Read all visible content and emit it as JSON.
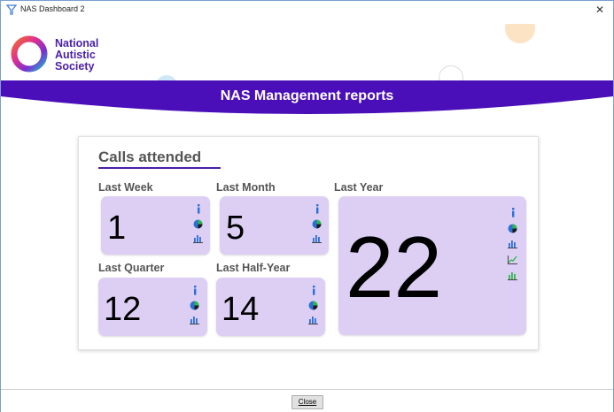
{
  "window": {
    "title": "NAS Dashboard 2",
    "close_glyph": "✕"
  },
  "logo": {
    "lines": [
      "National",
      "Autistic",
      "Society"
    ]
  },
  "banner": {
    "title": "NAS Management reports",
    "color": "#4a0fb8"
  },
  "panel": {
    "title": "Calls attended",
    "accent": "#4a1fa8",
    "tiles": [
      {
        "label": "Last Week",
        "value": "1",
        "icons": [
          "info-icon",
          "pie-chart-icon",
          "bar-chart-icon"
        ]
      },
      {
        "label": "Last Month",
        "value": "5",
        "icons": [
          "info-icon",
          "pie-chart-icon",
          "bar-chart-icon"
        ]
      },
      {
        "label": "Last Year",
        "value": "22",
        "icons": [
          "info-icon",
          "pie-chart-icon",
          "bar-chart-icon",
          "line-chart-icon",
          "bar-chart-green-icon"
        ]
      },
      {
        "label": "Last Quarter",
        "value": "12",
        "icons": [
          "info-icon",
          "pie-chart-icon",
          "bar-chart-icon"
        ]
      },
      {
        "label": "Last Half-Year",
        "value": "14",
        "icons": [
          "info-icon",
          "pie-chart-icon",
          "bar-chart-icon"
        ]
      }
    ]
  },
  "footer": {
    "close_label": "Close"
  }
}
